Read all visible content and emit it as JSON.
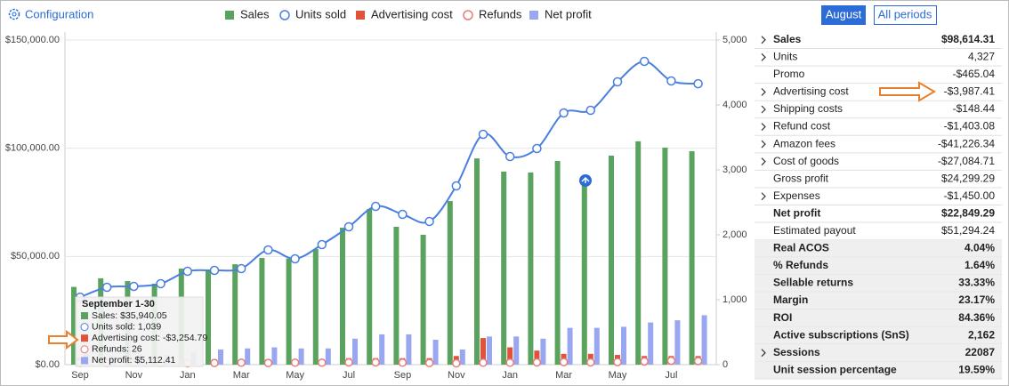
{
  "header": {
    "config": "Configuration",
    "buttons": [
      "August",
      "All periods"
    ]
  },
  "chart_data": {
    "type": "combo",
    "categories": [
      "Sep",
      null,
      "Nov",
      null,
      "Jan",
      null,
      "Mar",
      null,
      "May",
      null,
      "Jul",
      null,
      "Sep",
      null,
      "Nov",
      null,
      "Jan",
      null,
      "Mar",
      null,
      "May",
      null,
      "Jul",
      null
    ],
    "series": [
      {
        "name": "Sales",
        "type": "bar",
        "color": "#5aa35f",
        "axis": "y",
        "values": [
          35940,
          39900,
          38600,
          37400,
          44400,
          43600,
          46400,
          49300,
          49000,
          53400,
          63300,
          71900,
          63700,
          60000,
          75600,
          95300,
          89200,
          88800,
          94100,
          84300,
          96600,
          103200,
          100300,
          98614
        ]
      },
      {
        "name": "Units sold",
        "type": "line",
        "color": "#4a7fe0",
        "axis": "y2",
        "values": [
          1039,
          1192,
          1205,
          1247,
          1438,
          1452,
          1479,
          1767,
          1630,
          1849,
          2123,
          2438,
          2315,
          2205,
          2753,
          3548,
          3205,
          3329,
          3877,
          3918,
          4356,
          4671,
          4370,
          4327
        ]
      },
      {
        "name": "Advertising cost",
        "type": "bar",
        "color": "#e0523a",
        "axis": "y",
        "values": [
          3255,
          2000,
          1500,
          1500,
          1500,
          2500,
          2000,
          2500,
          2000,
          2500,
          3000,
          3000,
          3000,
          3000,
          4000,
          12300,
          8000,
          6500,
          5000,
          5000,
          4500,
          4000,
          4000,
          3987
        ]
      },
      {
        "name": "Refunds",
        "type": "points",
        "color": "#e87b7b",
        "axis": "y2",
        "values": [
          26,
          25,
          30,
          28,
          20,
          25,
          30,
          25,
          30,
          30,
          35,
          35,
          30,
          25,
          20,
          30,
          30,
          35,
          40,
          35,
          40,
          50,
          60,
          55
        ]
      },
      {
        "name": "Net profit",
        "type": "bar",
        "color": "#99a6f0",
        "axis": "y",
        "values": [
          5112,
          4000,
          4500,
          4500,
          6000,
          7000,
          7500,
          8000,
          7500,
          7500,
          12000,
          14000,
          14000,
          11500,
          7000,
          13000,
          13000,
          12000,
          17000,
          17000,
          17500,
          19500,
          20500,
          22849
        ]
      }
    ],
    "ylim": [
      0,
      150000
    ],
    "yticks": [
      {
        "value": 0,
        "label": "$0.00"
      },
      {
        "value": 50000,
        "label": "$50,000.00"
      },
      {
        "value": 100000,
        "label": "$100,000.00"
      },
      {
        "value": 150000,
        "label": "$150,000.00"
      }
    ],
    "y2lim": [
      0,
      5000
    ],
    "y2ticks": [
      0,
      {
        "value": 1000,
        "label": "1,000"
      },
      {
        "value": 2000,
        "label": "2,000"
      },
      {
        "value": 3000,
        "label": "3,000"
      },
      {
        "value": 4000,
        "label": "4,000"
      },
      {
        "value": 5000,
        "label": "5,000"
      }
    ],
    "grid": true,
    "tooltip": {
      "title": "September 1-30",
      "lines": [
        "Sales: $35,940.05",
        "Units sold: 1,039",
        "Advertising cost: -$3,254.79",
        "Refunds: 26",
        "Net profit: $5,112.41"
      ]
    }
  },
  "table": {
    "rows": [
      {
        "label": "Sales",
        "value": "$98,614.31",
        "expand": true,
        "bold": true,
        "shaded": false
      },
      {
        "label": "Units",
        "value": "4,327",
        "expand": true,
        "bold": false,
        "shaded": false
      },
      {
        "label": "Promo",
        "value": "-$465.04",
        "expand": false,
        "bold": false,
        "shaded": false
      },
      {
        "label": "Advertising cost",
        "value": "-$3,987.41",
        "expand": true,
        "bold": false,
        "shaded": false
      },
      {
        "label": "Shipping costs",
        "value": "-$148.44",
        "expand": true,
        "bold": false,
        "shaded": false
      },
      {
        "label": "Refund cost",
        "value": "-$1,403.08",
        "expand": true,
        "bold": false,
        "shaded": false
      },
      {
        "label": "Amazon fees",
        "value": "-$41,226.34",
        "expand": true,
        "bold": false,
        "shaded": false
      },
      {
        "label": "Cost of goods",
        "value": "-$27,084.71",
        "expand": true,
        "bold": false,
        "shaded": false
      },
      {
        "label": "Gross profit",
        "value": "$24,299.29",
        "expand": false,
        "bold": false,
        "shaded": false
      },
      {
        "label": "Expenses",
        "value": "-$1,450.00",
        "expand": true,
        "bold": false,
        "shaded": false
      },
      {
        "label": "Net profit",
        "value": "$22,849.29",
        "expand": false,
        "bold": true,
        "shaded": false
      },
      {
        "label": "Estimated payout",
        "value": "$51,294.24",
        "expand": false,
        "bold": false,
        "shaded": false
      },
      {
        "label": "Real ACOS",
        "value": "4.04%",
        "expand": false,
        "bold": true,
        "shaded": true
      },
      {
        "label": "% Refunds",
        "value": "1.64%",
        "expand": false,
        "bold": true,
        "shaded": true
      },
      {
        "label": "Sellable returns",
        "value": "33.33%",
        "expand": false,
        "bold": true,
        "shaded": true
      },
      {
        "label": "Margin",
        "value": "23.17%",
        "expand": false,
        "bold": true,
        "shaded": true
      },
      {
        "label": "ROI",
        "value": "84.36%",
        "expand": false,
        "bold": true,
        "shaded": true
      },
      {
        "label": "Active subscriptions (SnS)",
        "value": "2,162",
        "expand": false,
        "bold": true,
        "shaded": true
      },
      {
        "label": "Sessions",
        "value": "22087",
        "expand": true,
        "bold": true,
        "shaded": true
      },
      {
        "label": "Unit session percentage",
        "value": "19.59%",
        "expand": false,
        "bold": true,
        "shaded": true
      }
    ]
  }
}
